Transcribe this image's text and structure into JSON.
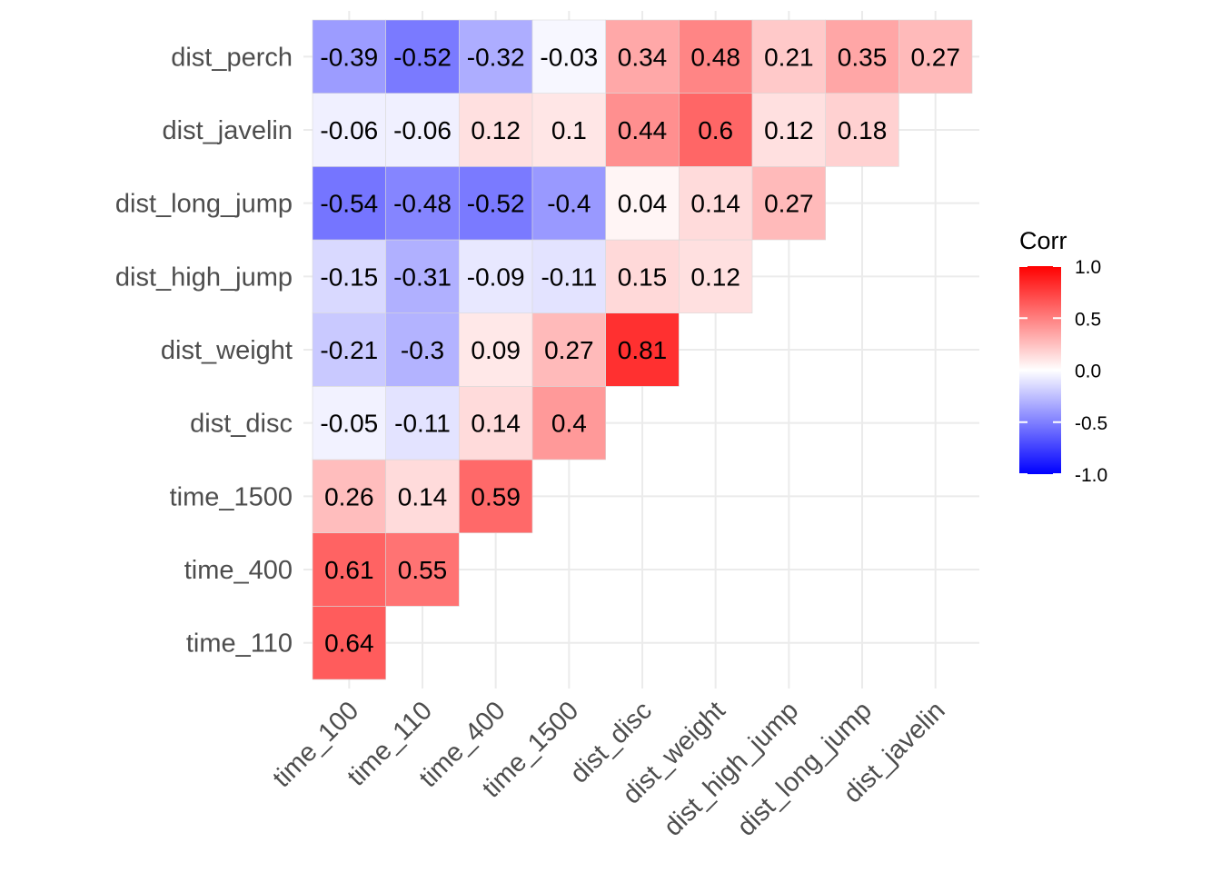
{
  "chart_data": {
    "type": "heatmap",
    "title": "",
    "xlabel": "",
    "ylabel": "",
    "x": [
      "time_100",
      "time_110",
      "time_400",
      "time_1500",
      "dist_disc",
      "dist_weight",
      "dist_high_jump",
      "dist_long_jump",
      "dist_javelin"
    ],
    "y": [
      "time_110",
      "time_400",
      "time_1500",
      "dist_disc",
      "dist_weight",
      "dist_high_jump",
      "dist_long_jump",
      "dist_javelin",
      "dist_perch"
    ],
    "values": [
      [
        0.64,
        null,
        null,
        null,
        null,
        null,
        null,
        null,
        null
      ],
      [
        0.61,
        0.55,
        null,
        null,
        null,
        null,
        null,
        null,
        null
      ],
      [
        0.26,
        0.14,
        0.59,
        null,
        null,
        null,
        null,
        null,
        null
      ],
      [
        -0.05,
        -0.11,
        0.14,
        0.4,
        null,
        null,
        null,
        null,
        null
      ],
      [
        -0.21,
        -0.3,
        0.09,
        0.27,
        0.81,
        null,
        null,
        null,
        null
      ],
      [
        -0.15,
        -0.31,
        -0.09,
        -0.11,
        0.15,
        0.12,
        null,
        null,
        null
      ],
      [
        -0.54,
        -0.48,
        -0.52,
        -0.4,
        0.04,
        0.14,
        0.27,
        null,
        null
      ],
      [
        -0.06,
        -0.06,
        0.12,
        0.1,
        0.44,
        0.6,
        0.12,
        0.18,
        null
      ],
      [
        -0.39,
        -0.52,
        -0.32,
        -0.03,
        0.34,
        0.48,
        0.21,
        0.35,
        0.27
      ]
    ],
    "legend": {
      "title": "Corr",
      "position": "right",
      "range": [
        -1,
        1
      ],
      "ticks": [
        1.0,
        0.5,
        0.0,
        -0.5,
        -1.0
      ],
      "tick_labels": [
        "1.0",
        "0.5",
        "0.0",
        "-0.5",
        "-1.0"
      ],
      "low_color": "#0000FF",
      "mid_color": "#FFFFFF",
      "high_color": "#FF0000"
    },
    "grid": true
  }
}
